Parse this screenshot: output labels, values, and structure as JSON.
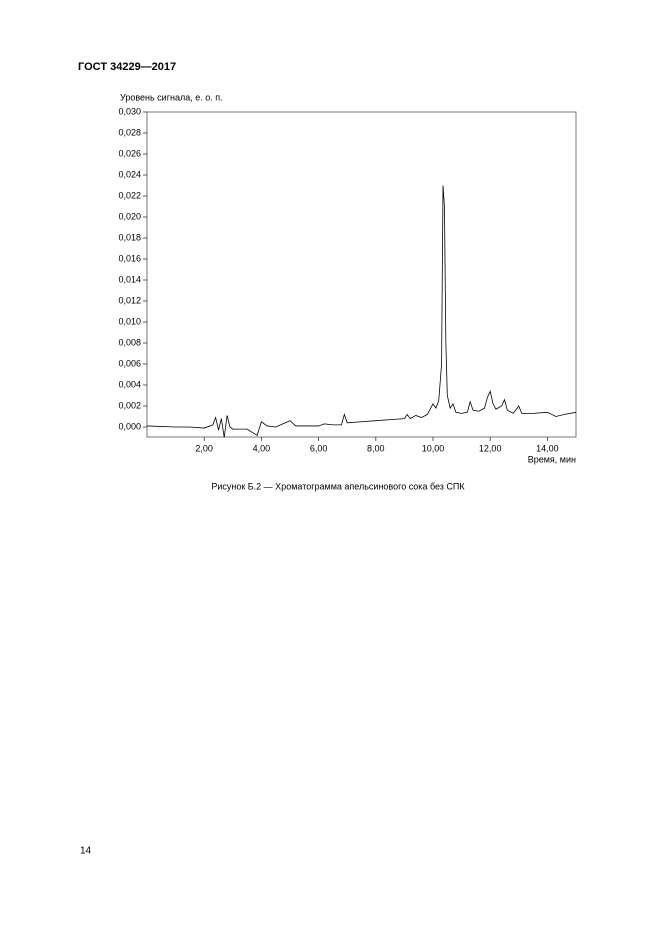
{
  "header": {
    "title": "ГОСТ 34229—2017"
  },
  "chart_data": {
    "type": "line",
    "ylabel": "Уровень сигнала, е. о. п.",
    "xlabel": "Время, мин",
    "xlim": [
      0,
      15
    ],
    "ylim": [
      0,
      0.03
    ],
    "xticks": [
      {
        "value": 2,
        "label": "2,00"
      },
      {
        "value": 4,
        "label": "4,00"
      },
      {
        "value": 6,
        "label": "6,00"
      },
      {
        "value": 8,
        "label": "8,00"
      },
      {
        "value": 10,
        "label": "10,00"
      },
      {
        "value": 12,
        "label": "12,00"
      },
      {
        "value": 14,
        "label": "14,00"
      }
    ],
    "yticks": [
      {
        "value": 0,
        "label": "0,000"
      },
      {
        "value": 0.002,
        "label": "0,002"
      },
      {
        "value": 0.004,
        "label": "0,004"
      },
      {
        "value": 0.006,
        "label": "0,006"
      },
      {
        "value": 0.008,
        "label": "0,008"
      },
      {
        "value": 0.01,
        "label": "0,010"
      },
      {
        "value": 0.012,
        "label": "0,012"
      },
      {
        "value": 0.014,
        "label": "0,014"
      },
      {
        "value": 0.016,
        "label": "0,016"
      },
      {
        "value": 0.018,
        "label": "0,018"
      },
      {
        "value": 0.02,
        "label": "0,020"
      },
      {
        "value": 0.022,
        "label": "0,022"
      },
      {
        "value": 0.024,
        "label": "0,024"
      },
      {
        "value": 0.026,
        "label": "0,026"
      },
      {
        "value": 0.028,
        "label": "0,028"
      },
      {
        "value": 0.03,
        "label": "0,030"
      }
    ],
    "color": "#000000",
    "x": [
      0,
      1,
      1.5,
      2,
      2.3,
      2.4,
      2.5,
      2.6,
      2.7,
      2.8,
      2.9,
      3,
      3.5,
      3.85,
      4,
      4.2,
      4.5,
      5,
      5.2,
      6,
      6.2,
      6.5,
      6.8,
      6.9,
      7,
      7.5,
      8,
      8.5,
      9,
      9.1,
      9.2,
      9.4,
      9.6,
      9.8,
      10,
      10.1,
      10.2,
      10.3,
      10.35,
      10.4,
      10.45,
      10.5,
      10.6,
      10.7,
      10.8,
      11,
      11.2,
      11.3,
      11.4,
      11.6,
      11.8,
      11.9,
      12,
      12.1,
      12.2,
      12.4,
      12.5,
      12.6,
      12.8,
      13,
      13.1,
      13.5,
      14,
      14.3,
      14.6,
      15
    ],
    "values": [
      0.0001,
      0,
      0,
      -0.0001,
      0.0002,
      0.0009,
      -0.0003,
      0.0008,
      -0.001,
      0.0011,
      0,
      -0.0002,
      -0.0002,
      -0.0008,
      0.0005,
      0.0001,
      0,
      0.0006,
      0.0001,
      0.0001,
      0.0003,
      0.0002,
      0.0002,
      0.0012,
      0.0004,
      0.0005,
      0.0006,
      0.0007,
      0.0008,
      0.0012,
      0.0008,
      0.0011,
      0.0009,
      0.0012,
      0.0022,
      0.0018,
      0.0025,
      0.006,
      0.023,
      0.021,
      0.008,
      0.003,
      0.0018,
      0.0022,
      0.0014,
      0.0013,
      0.0014,
      0.0024,
      0.0016,
      0.0015,
      0.0018,
      0.0028,
      0.0034,
      0.0022,
      0.0017,
      0.002,
      0.0026,
      0.0016,
      0.0013,
      0.002,
      0.0013,
      0.0013,
      0.0014,
      0.001,
      0.0012,
      0.0014
    ]
  },
  "caption": "Рисунок Б.2 — Хроматограмма апельсинового сока без СПК",
  "page_number": "14"
}
